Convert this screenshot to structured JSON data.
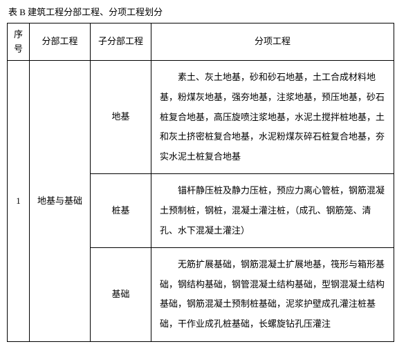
{
  "caption": "表 B  建筑工程分部工程、分项工程划分",
  "headers": {
    "seq": "序号",
    "division": "分部工程",
    "subdivision": "子分部工程",
    "item": "分项工程"
  },
  "rows": {
    "seq": "1",
    "division": "地基与基础",
    "sub1": "地基",
    "detail1": "素土、灰土地基，砂和砂石地基，土工合成材料地基，粉煤灰地基，强夯地基，注浆地基，预压地基，砂石桩复合地基，高压旋喷注浆地基，水泥土搅拌桩地基，土和灰土挤密桩复合地基，水泥粉煤灰碎石桩复合地基，夯实水泥土桩复合地基",
    "sub2": "桩基",
    "detail2": "锚杆静压桩及静力压桩，预应力离心管桩，钢筋混凝土预制桩，钢桩，混凝土灌注桩，（成孔、钢筋笼、清孔、水下混凝土灌注）",
    "sub3": "基础",
    "detail3": "无筋扩展基础，钢筋混凝土扩展地基，筏形与箱形基础，钢结构基础，钢管混凝土结构基础，型钢混凝土结构基础，钢筋混凝土预制桩基础，泥浆护壁成孔灌注桩基础，干作业成孔桩基础，长螺旋钻孔压灌注"
  }
}
